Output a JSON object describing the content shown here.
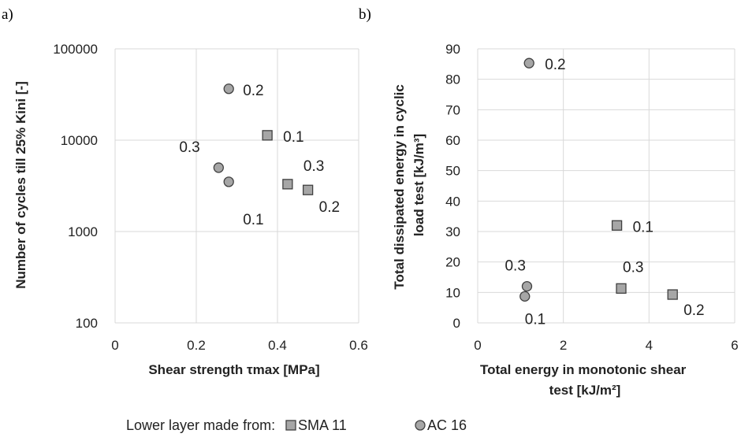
{
  "chart_data": [
    {
      "panel": "a)",
      "type": "scatter",
      "xlabel": "Shear strength τmax [MPa]",
      "ylabel": "Number of cycles till 25% Kini [-]",
      "xlim": [
        0,
        0.6
      ],
      "ylim": [
        100,
        100000
      ],
      "yscale": "log",
      "xticks": [
        "0",
        "0.2",
        "0.4",
        "0.6"
      ],
      "yticks": [
        "100",
        "1000",
        "10000",
        "100000"
      ],
      "grid": true,
      "series": [
        {
          "name": "SMA 11",
          "marker": "square",
          "points": [
            {
              "x": 0.375,
              "y": 11300,
              "label": "0.1"
            },
            {
              "x": 0.425,
              "y": 3300,
              "label": "0.3"
            },
            {
              "x": 0.475,
              "y": 2850,
              "label": "0.2"
            }
          ]
        },
        {
          "name": "AC 16",
          "marker": "circle",
          "points": [
            {
              "x": 0.28,
              "y": 36500,
              "label": "0.2"
            },
            {
              "x": 0.255,
              "y": 5000,
              "label": "0.3"
            },
            {
              "x": 0.28,
              "y": 3500,
              "label": "0.1"
            }
          ]
        }
      ]
    },
    {
      "panel": "b)",
      "type": "scatter",
      "xlabel": [
        "Total energy in monotonic shear",
        "test [kJ/m²]"
      ],
      "ylabel": [
        "Total dissipated energy in cyclic",
        "load test [kJ/m³]"
      ],
      "xlim": [
        0,
        6
      ],
      "ylim": [
        0,
        90
      ],
      "xticks": [
        "0",
        "2",
        "4",
        "6"
      ],
      "yticks": [
        "0",
        "10",
        "20",
        "30",
        "40",
        "50",
        "60",
        "70",
        "80",
        "90"
      ],
      "grid": true,
      "series": [
        {
          "name": "SMA 11",
          "marker": "square",
          "points": [
            {
              "x": 3.25,
              "y": 32,
              "label": "0.1"
            },
            {
              "x": 3.35,
              "y": 11.3,
              "label": "0.3"
            },
            {
              "x": 4.55,
              "y": 9.3,
              "label": "0.2"
            }
          ]
        },
        {
          "name": "AC 16",
          "marker": "circle",
          "points": [
            {
              "x": 1.2,
              "y": 85.3,
              "label": "0.2"
            },
            {
              "x": 1.15,
              "y": 12,
              "label": "0.3"
            },
            {
              "x": 1.1,
              "y": 8.7,
              "label": "0.1"
            }
          ]
        }
      ]
    }
  ],
  "legend": {
    "title": "Lower layer made from:",
    "items": [
      {
        "label": "SMA 11",
        "marker": "square"
      },
      {
        "label": "AC 16",
        "marker": "circle"
      }
    ]
  },
  "colors": {
    "marker_fill": "#a6a6a6",
    "marker_stroke": "#404040",
    "grid": "#d9d9d9"
  }
}
